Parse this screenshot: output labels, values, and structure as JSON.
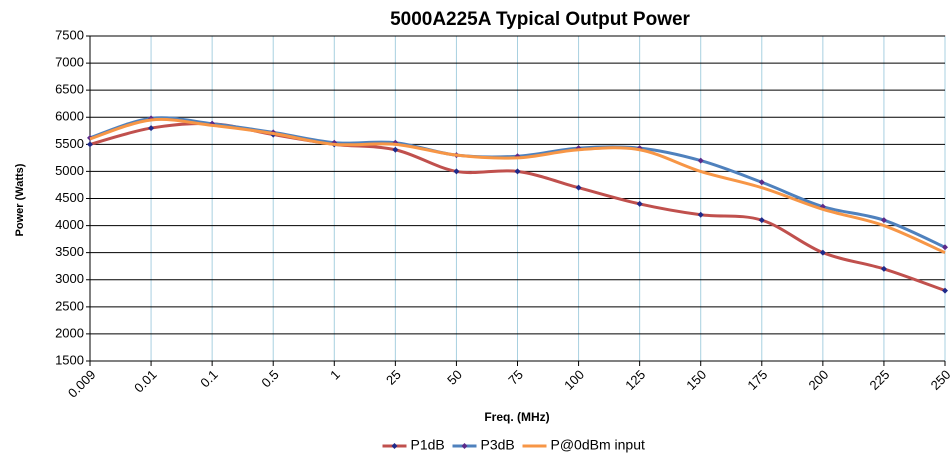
{
  "chart_data": {
    "type": "line",
    "title": "5000A225A Typical Output Power",
    "x_label": "Freq. (MHz)",
    "y_label": "Power (Watts)",
    "categories": [
      "0.009",
      "0.01",
      "0.1",
      "0.5",
      "1",
      "25",
      "50",
      "75",
      "100",
      "125",
      "150",
      "175",
      "200",
      "225",
      "250"
    ],
    "series": [
      {
        "name": "P1dB",
        "color": "#c0504d",
        "marker": "#1f2a8a",
        "values": [
          5500,
          5800,
          5880,
          5680,
          5500,
          5400,
          5000,
          5000,
          4700,
          4400,
          4200,
          4100,
          3500,
          3200,
          2800
        ]
      },
      {
        "name": "P3dB",
        "color": "#4f81bd",
        "marker": "#5b2a8a",
        "values": [
          5620,
          5980,
          5880,
          5720,
          5530,
          5530,
          5300,
          5280,
          5430,
          5430,
          5200,
          4800,
          4350,
          4100,
          3600
        ]
      },
      {
        "name": "P@0dBm input",
        "color": "#f79646",
        "values": [
          5600,
          5950,
          5850,
          5700,
          5500,
          5500,
          5300,
          5250,
          5400,
          5400,
          5000,
          4700,
          4300,
          4000,
          3500
        ]
      }
    ],
    "ylim": [
      1500,
      7500
    ],
    "yticks": [
      1500,
      2000,
      2500,
      3000,
      3500,
      4000,
      4500,
      5000,
      5500,
      6000,
      6500,
      7000,
      7500
    ],
    "grid": true,
    "legend": "bottom"
  }
}
